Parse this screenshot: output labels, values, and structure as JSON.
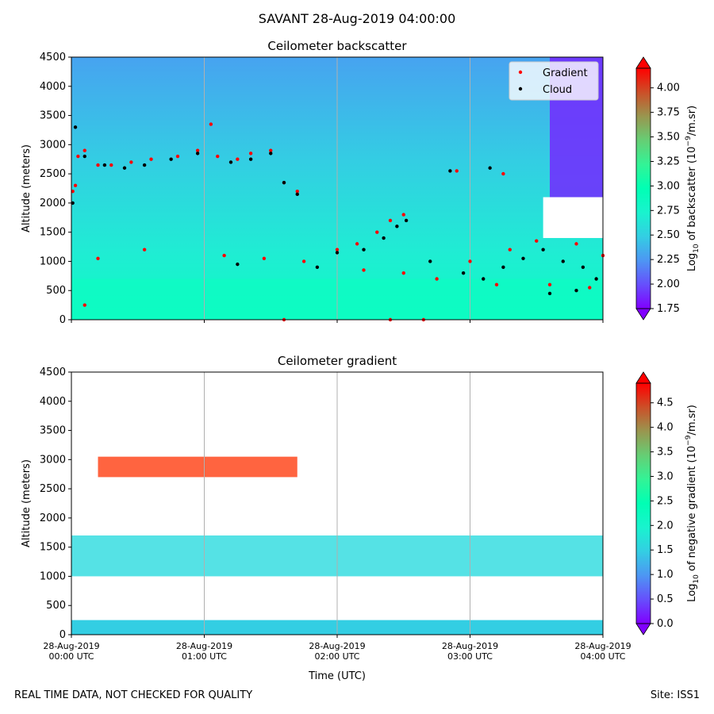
{
  "figure": {
    "suptitle": "SAVANT 28-Aug-2019 04:00:00",
    "footer_left": "REAL TIME DATA, NOT CHECKED FOR QUALITY",
    "footer_right": "Site: ISS1"
  },
  "chart_data": [
    {
      "type": "heatmap",
      "title": "Ceilometer backscatter",
      "xlabel": "",
      "ylabel": "Altitude (meters)",
      "x_ticks": [
        "28-Aug-2019\n00:00 UTC",
        "28-Aug-2019\n01:00 UTC",
        "28-Aug-2019\n02:00 UTC",
        "28-Aug-2019\n03:00 UTC",
        "28-Aug-2019\n04:00 UTC"
      ],
      "x_tick_labels_visible": false,
      "xlim_hours": [
        0,
        4
      ],
      "ylim": [
        0,
        4500
      ],
      "y_ticks": [
        0,
        500,
        1000,
        1500,
        2000,
        2500,
        3000,
        3500,
        4000,
        4500
      ],
      "grid": "vertical",
      "legend": {
        "placement": "top-right",
        "entries": [
          {
            "label": "Gradient",
            "color": "#ff0000",
            "marker": "dot"
          },
          {
            "label": "Cloud",
            "color": "#000000",
            "marker": "dot"
          }
        ]
      },
      "colorbar": {
        "label_main": "Log",
        "label_sub": "10",
        "label_rest": " of backscatter (10",
        "label_sup": "−9",
        "label_end": "/m.sr)",
        "min": 1.75,
        "max": 4.2,
        "ticks": [
          "1.75",
          "2.00",
          "2.25",
          "2.50",
          "2.75",
          "3.00",
          "3.25",
          "3.50",
          "3.75",
          "4.00"
        ],
        "tick_values": [
          1.75,
          2.0,
          2.25,
          2.5,
          2.75,
          3.0,
          3.25,
          3.5,
          3.75,
          4.0
        ],
        "extend": "both"
      },
      "series": [
        {
          "name": "Gradient",
          "points": [
            [
              0.01,
              2200
            ],
            [
              0.03,
              2300
            ],
            [
              0.05,
              2800
            ],
            [
              0.1,
              2900
            ],
            [
              0.2,
              2650
            ],
            [
              0.3,
              2650
            ],
            [
              0.45,
              2700
            ],
            [
              0.6,
              2750
            ],
            [
              0.8,
              2800
            ],
            [
              0.95,
              2900
            ],
            [
              1.1,
              2800
            ],
            [
              1.25,
              2750
            ],
            [
              1.35,
              2850
            ],
            [
              1.5,
              2900
            ],
            [
              1.6,
              2350
            ],
            [
              1.7,
              2200
            ],
            [
              2.0,
              1200
            ],
            [
              2.15,
              1300
            ],
            [
              2.3,
              1500
            ],
            [
              2.4,
              1700
            ],
            [
              2.5,
              1800
            ],
            [
              0.2,
              1050
            ],
            [
              0.55,
              1200
            ],
            [
              1.15,
              1100
            ],
            [
              1.45,
              1050
            ],
            [
              1.75,
              1000
            ],
            [
              2.2,
              850
            ],
            [
              2.5,
              800
            ],
            [
              2.75,
              700
            ],
            [
              3.0,
              1000
            ],
            [
              3.3,
              1200
            ],
            [
              3.5,
              1350
            ],
            [
              3.8,
              1300
            ],
            [
              4.0,
              1100
            ],
            [
              3.2,
              600
            ],
            [
              3.6,
              600
            ],
            [
              3.9,
              550
            ],
            [
              0.1,
              250
            ],
            [
              1.6,
              0
            ],
            [
              2.4,
              0
            ],
            [
              2.65,
              0
            ],
            [
              1.05,
              3350
            ],
            [
              2.9,
              2550
            ],
            [
              3.25,
              2500
            ]
          ]
        },
        {
          "name": "Cloud",
          "points": [
            [
              0.01,
              2000
            ],
            [
              0.03,
              3300
            ],
            [
              0.1,
              2800
            ],
            [
              0.25,
              2650
            ],
            [
              0.4,
              2600
            ],
            [
              0.55,
              2650
            ],
            [
              0.75,
              2750
            ],
            [
              0.95,
              2850
            ],
            [
              1.2,
              2700
            ],
            [
              1.35,
              2750
            ],
            [
              1.5,
              2850
            ],
            [
              1.6,
              2350
            ],
            [
              1.7,
              2150
            ],
            [
              2.0,
              1150
            ],
            [
              2.2,
              1200
            ],
            [
              2.35,
              1400
            ],
            [
              2.45,
              1600
            ],
            [
              2.52,
              1700
            ],
            [
              1.25,
              950
            ],
            [
              1.85,
              900
            ],
            [
              2.7,
              1000
            ],
            [
              2.95,
              800
            ],
            [
              3.1,
              700
            ],
            [
              3.25,
              900
            ],
            [
              3.4,
              1050
            ],
            [
              3.55,
              1200
            ],
            [
              3.7,
              1000
            ],
            [
              3.85,
              900
            ],
            [
              3.95,
              700
            ],
            [
              3.6,
              450
            ],
            [
              3.8,
              500
            ],
            [
              2.85,
              2550
            ],
            [
              3.15,
              2600
            ]
          ]
        }
      ]
    },
    {
      "type": "heatmap",
      "title": "Ceilometer gradient",
      "xlabel": "Time (UTC)",
      "ylabel": "Altitude (meters)",
      "x_ticks": [
        "28-Aug-2019\n00:00 UTC",
        "28-Aug-2019\n01:00 UTC",
        "28-Aug-2019\n02:00 UTC",
        "28-Aug-2019\n03:00 UTC",
        "28-Aug-2019\n04:00 UTC"
      ],
      "x_tick_labels_visible": true,
      "xlim_hours": [
        0,
        4
      ],
      "ylim": [
        0,
        4500
      ],
      "y_ticks": [
        0,
        500,
        1000,
        1500,
        2000,
        2500,
        3000,
        3500,
        4000,
        4500
      ],
      "grid": "vertical",
      "colorbar": {
        "label_main": "Log",
        "label_sub": "10",
        "label_rest": " of negative gradient (10",
        "label_sup": "−9",
        "label_end": "/m.sr)",
        "min": 0.0,
        "max": 4.9,
        "ticks": [
          "0.0",
          "0.5",
          "1.0",
          "1.5",
          "2.0",
          "2.5",
          "3.0",
          "3.5",
          "4.0",
          "4.5"
        ],
        "tick_values": [
          0.0,
          0.5,
          1.0,
          1.5,
          2.0,
          2.5,
          3.0,
          3.5,
          4.0,
          4.5
        ],
        "extend": "both"
      }
    }
  ]
}
